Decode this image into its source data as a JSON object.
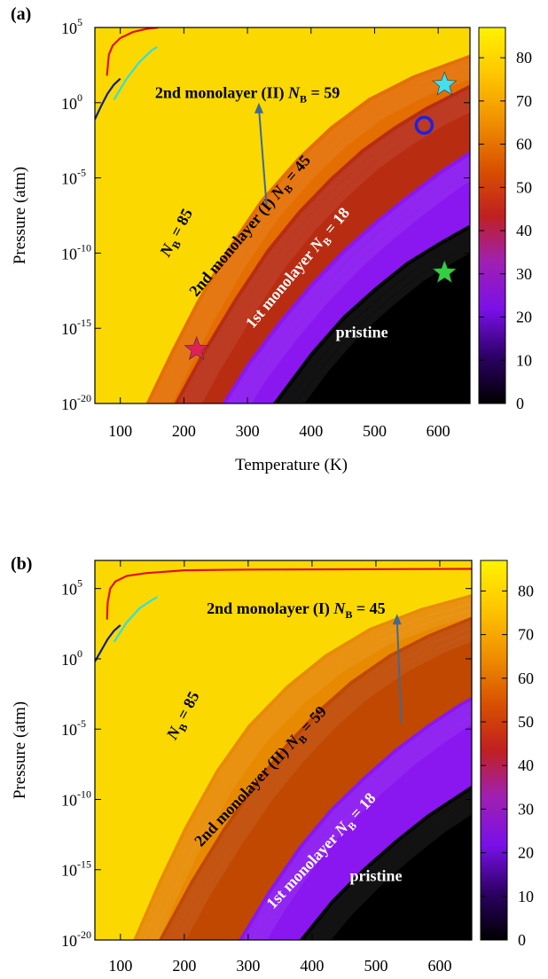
{
  "chart_data": [
    {
      "type": "heatmap",
      "panel_label": "(a)",
      "xlabel": "Temperature (K)",
      "ylabel": "Pressure (atm)",
      "x_ticks": [
        100,
        200,
        300,
        400,
        500,
        600
      ],
      "y_ticks": [
        -20,
        -15,
        -10,
        -5,
        0,
        5
      ],
      "y_tick_labels": [
        "10",
        "10",
        "10",
        "10",
        "10",
        "10"
      ],
      "y_tick_exponents": [
        "-20",
        "-15",
        "-10",
        "-5",
        "0",
        "5"
      ],
      "xlim": [
        60,
        650
      ],
      "ylim_log10": [
        -20,
        5
      ],
      "y_scale": "log",
      "colorbar": {
        "ticks": [
          0,
          10,
          20,
          30,
          40,
          50,
          60,
          70,
          80
        ],
        "range": [
          0,
          87
        ],
        "colormap": "black-purple-red-orange-yellow"
      },
      "regions": [
        {
          "name": "pristine",
          "value": 0
        },
        {
          "name": "1st monolayer",
          "NB": 18
        },
        {
          "name": "2nd monolayer (I)",
          "NB": 45
        },
        {
          "name": "2nd monolayer (II)",
          "NB": 59
        },
        {
          "name": "NB = 85",
          "NB": 85
        }
      ],
      "boundaries": {
        "pristine_1st": [
          [
            340,
            -20
          ],
          [
            400,
            -16.6
          ],
          [
            450,
            -14.2
          ],
          [
            500,
            -12.3
          ],
          [
            550,
            -10.6
          ],
          [
            600,
            -9.3
          ],
          [
            650,
            -8.1
          ]
        ],
        "first_2ndI": [
          [
            260,
            -20
          ],
          [
            300,
            -17.3
          ],
          [
            350,
            -14.5
          ],
          [
            400,
            -12
          ],
          [
            450,
            -9.8
          ],
          [
            500,
            -7.9
          ],
          [
            550,
            -6.2
          ],
          [
            600,
            -4.6
          ],
          [
            650,
            -3.2
          ]
        ],
        "2ndI_2ndII": [
          [
            185,
            -20
          ],
          [
            230,
            -16.5
          ],
          [
            280,
            -13
          ],
          [
            330,
            -9.8
          ],
          [
            380,
            -7.2
          ],
          [
            430,
            -5
          ],
          [
            480,
            -3.1
          ],
          [
            530,
            -1.6
          ],
          [
            580,
            -0.3
          ],
          [
            650,
            1.2
          ]
        ],
        "2ndII_85": [
          [
            140,
            -20
          ],
          [
            180,
            -16.5
          ],
          [
            220,
            -13.2
          ],
          [
            270,
            -9.6
          ],
          [
            320,
            -6.5
          ],
          [
            380,
            -3.6
          ],
          [
            430,
            -1.6
          ],
          [
            490,
            0.3
          ],
          [
            560,
            1.8
          ],
          [
            650,
            3.2
          ]
        ]
      },
      "labels": [
        {
          "text_main": "2nd monolayer (II) ",
          "text_italic": "N",
          "sub": "B",
          "text_tail": " = 59",
          "T": 300,
          "logP": 0.3,
          "rotate": 0,
          "color": "#000000"
        },
        {
          "text_main": "",
          "text_italic": "N",
          "sub": "B",
          "text_tail": " = 85",
          "T": 195,
          "logP": -8.8,
          "rotate": -62,
          "color": "#000000"
        },
        {
          "text_main": "2nd monolayer (I) ",
          "text_italic": "N",
          "sub": "B",
          "text_tail": " = 45",
          "T": 310,
          "logP": -8.4,
          "rotate": -50,
          "color": "#000000"
        },
        {
          "text_main": "1st monolayer ",
          "text_italic": "N",
          "sub": "B",
          "text_tail": " = 18",
          "T": 385,
          "logP": -11.2,
          "rotate": -50,
          "color": "#ffffff"
        },
        {
          "text_main": "pristine",
          "text_italic": "",
          "sub": "",
          "text_tail": "",
          "T": 480,
          "logP": -15.6,
          "rotate": 0,
          "color": "#ffffff"
        }
      ],
      "arrow": {
        "from": [
          330,
          -6.8
        ],
        "to": [
          318,
          0.0
        ]
      },
      "red_curve": [
        [
          79,
          1.8
        ],
        [
          82,
          3.2
        ],
        [
          88,
          3.8
        ],
        [
          100,
          4.3
        ],
        [
          120,
          4.7
        ],
        [
          140,
          4.9
        ],
        [
          160,
          5.0
        ]
      ],
      "cyan_curve": [
        [
          90,
          0.2
        ],
        [
          110,
          1.6
        ],
        [
          130,
          2.7
        ],
        [
          150,
          3.5
        ],
        [
          158,
          3.7
        ]
      ],
      "navy_curve": [
        [
          60,
          -1.1
        ],
        [
          70,
          -0.2
        ],
        [
          80,
          0.6
        ],
        [
          90,
          1.2
        ],
        [
          100,
          1.6
        ]
      ],
      "markers": [
        {
          "shape": "star",
          "T": 610,
          "logP": 1.2,
          "color": "#40e0f0"
        },
        {
          "shape": "circle",
          "T": 578,
          "logP": -1.5,
          "color": "#2020e0"
        },
        {
          "shape": "star",
          "T": 610,
          "logP": -11.3,
          "color": "#30d040"
        },
        {
          "shape": "star",
          "T": 220,
          "logP": -16.4,
          "color": "#e0205a"
        }
      ]
    },
    {
      "type": "heatmap",
      "panel_label": "(b)",
      "xlabel": "",
      "ylabel": "Pressure (atm)",
      "x_ticks": [
        100,
        200,
        300,
        400,
        500,
        600
      ],
      "y_ticks": [
        -20,
        -15,
        -10,
        -5,
        0,
        5
      ],
      "y_tick_labels": [
        "10",
        "10",
        "10",
        "10",
        "10",
        "10"
      ],
      "y_tick_exponents": [
        "-20",
        "-15",
        "-10",
        "-5",
        "0",
        "5"
      ],
      "xlim": [
        60,
        650
      ],
      "ylim_log10": [
        -20,
        7
      ],
      "y_scale": "log",
      "colorbar": {
        "ticks": [
          0,
          10,
          20,
          30,
          40,
          50,
          60,
          70,
          80
        ],
        "range": [
          0,
          87
        ],
        "colormap": "black-purple-red-orange-yellow"
      },
      "regions": [
        {
          "name": "pristine",
          "value": 0
        },
        {
          "name": "1st monolayer",
          "NB": 18
        },
        {
          "name": "2nd monolayer (II)",
          "NB": 59
        },
        {
          "name": "2nd monolayer (I)",
          "NB": 45
        },
        {
          "name": "NB = 85",
          "NB": 85
        }
      ],
      "boundaries": {
        "pristine_1st": [
          [
            380,
            -20
          ],
          [
            430,
            -17.2
          ],
          [
            480,
            -14.9
          ],
          [
            530,
            -12.9
          ],
          [
            580,
            -11.1
          ],
          [
            630,
            -9.6
          ],
          [
            650,
            -9.0
          ]
        ],
        "first_2ndI": [
          [
            285,
            -20
          ],
          [
            330,
            -16.6
          ],
          [
            380,
            -13.3
          ],
          [
            430,
            -10.6
          ],
          [
            480,
            -8.4
          ],
          [
            530,
            -6.4
          ],
          [
            580,
            -4.7
          ],
          [
            630,
            -3.2
          ],
          [
            650,
            -2.7
          ]
        ],
        "2ndI_2ndII": [
          [
            160,
            -20
          ],
          [
            210,
            -15.8
          ],
          [
            260,
            -12.1
          ],
          [
            310,
            -8.8
          ],
          [
            360,
            -6.0
          ],
          [
            410,
            -3.6
          ],
          [
            460,
            -1.6
          ],
          [
            520,
            0.3
          ],
          [
            580,
            1.7
          ],
          [
            650,
            3.0
          ]
        ],
        "2ndII_85": [
          [
            120,
            -20
          ],
          [
            160,
            -15.8
          ],
          [
            200,
            -12.0
          ],
          [
            250,
            -7.9
          ],
          [
            300,
            -4.7
          ],
          [
            360,
            -1.9
          ],
          [
            420,
            0.3
          ],
          [
            490,
            2.2
          ],
          [
            570,
            3.6
          ],
          [
            650,
            4.6
          ]
        ]
      },
      "labels": [
        {
          "text_main": "2nd monolayer (I) ",
          "text_italic": "N",
          "sub": "B",
          "text_tail": " = 45",
          "T": 375,
          "logP": 3.2,
          "rotate": 0,
          "color": "#000000"
        },
        {
          "text_main": "",
          "text_italic": "N",
          "sub": "B",
          "text_tail": " = 85",
          "T": 205,
          "logP": -4.2,
          "rotate": -62,
          "color": "#000000"
        },
        {
          "text_main": "2nd monolayer (II) ",
          "text_italic": "N",
          "sub": "B",
          "text_tail": " = 59",
          "T": 325,
          "logP": -8.6,
          "rotate": -47,
          "color": "#000000"
        },
        {
          "text_main": "1st monolayer ",
          "text_italic": "N",
          "sub": "B",
          "text_tail": " = 18",
          "T": 420,
          "logP": -13.9,
          "rotate": -47,
          "color": "#ffffff"
        },
        {
          "text_main": "pristine",
          "text_italic": "",
          "sub": "",
          "text_tail": "",
          "T": 500,
          "logP": -15.8,
          "rotate": 0,
          "color": "#ffffff"
        }
      ],
      "arrow": {
        "from": [
          540,
          -4.6
        ],
        "to": [
          533,
          3.2
        ]
      },
      "red_curve": [
        [
          79,
          2.8
        ],
        [
          80,
          4.0
        ],
        [
          84,
          5.0
        ],
        [
          92,
          5.5
        ],
        [
          110,
          5.9
        ],
        [
          140,
          6.1
        ],
        [
          200,
          6.3
        ],
        [
          300,
          6.35
        ],
        [
          650,
          6.4
        ]
      ],
      "cyan_curve": [
        [
          90,
          1.2
        ],
        [
          110,
          2.6
        ],
        [
          130,
          3.6
        ],
        [
          150,
          4.2
        ],
        [
          158,
          4.4
        ]
      ],
      "navy_curve": [
        [
          60,
          -0.2
        ],
        [
          70,
          0.6
        ],
        [
          80,
          1.4
        ],
        [
          90,
          2.0
        ],
        [
          100,
          2.4
        ]
      ],
      "markers": []
    }
  ]
}
